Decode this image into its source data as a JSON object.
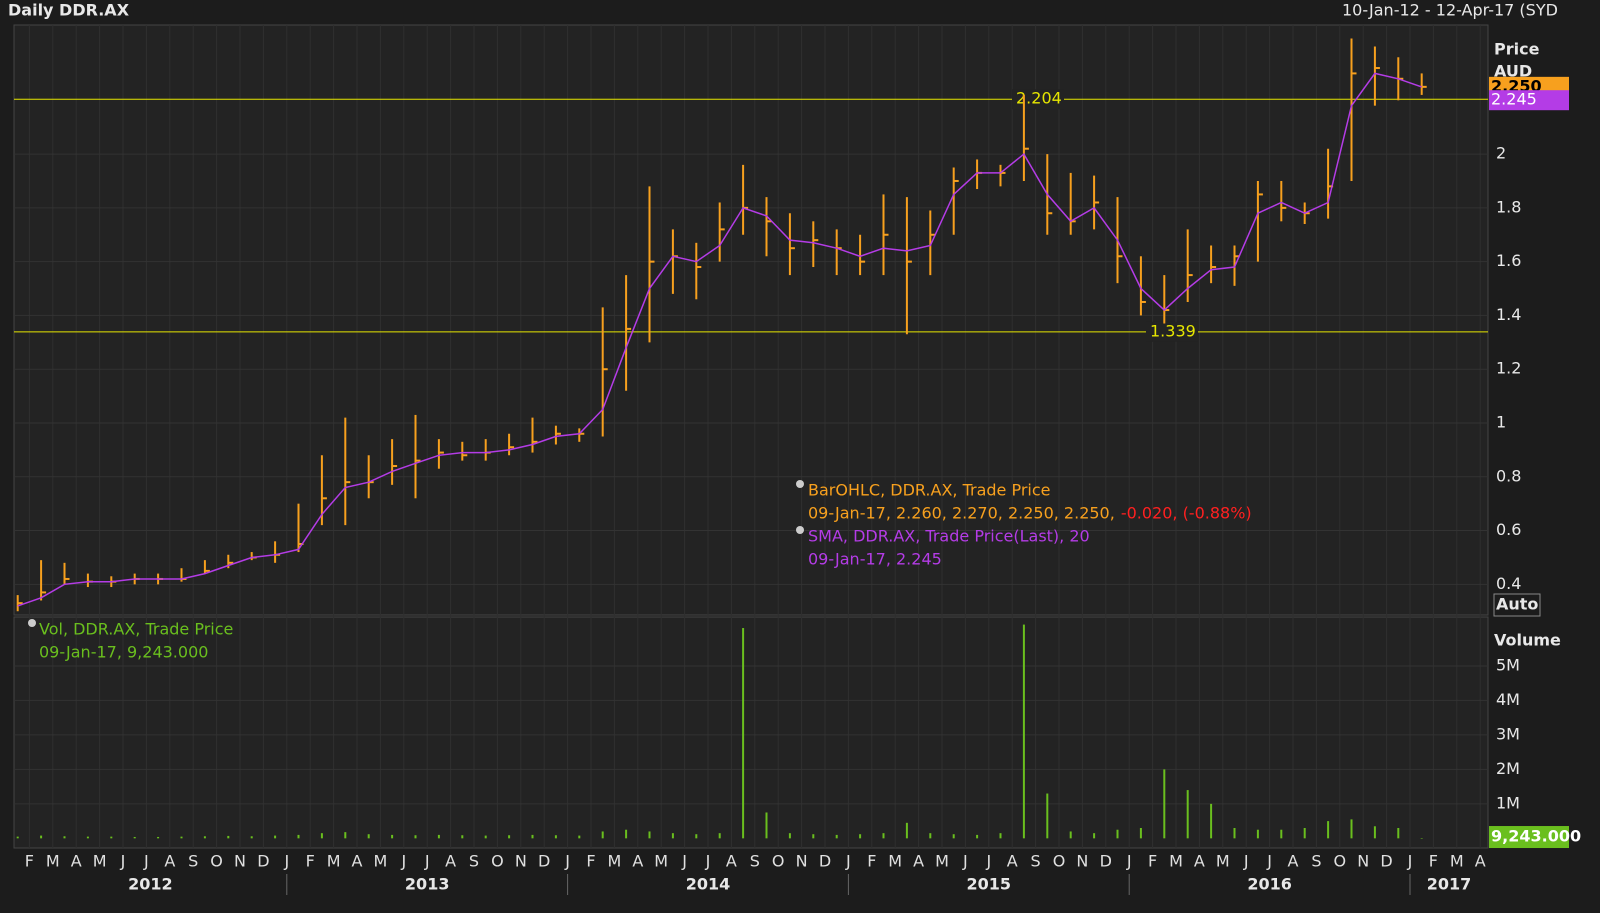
{
  "chart_data": [
    {
      "type": "ohlc",
      "title": "Daily DDR.AX",
      "date_range": "10-Jan-12 - 12-Apr-17 (SYD",
      "axis_title": "Price",
      "unit": "AUD",
      "scale_mode": "Auto",
      "x": [
        "2012-01",
        "2012-02",
        "2012-03",
        "2012-04",
        "2012-05",
        "2012-06",
        "2012-07",
        "2012-08",
        "2012-09",
        "2012-10",
        "2012-11",
        "2012-12",
        "2013-01",
        "2013-02",
        "2013-03",
        "2013-04",
        "2013-05",
        "2013-06",
        "2013-07",
        "2013-08",
        "2013-09",
        "2013-10",
        "2013-11",
        "2013-12",
        "2014-01",
        "2014-02",
        "2014-03",
        "2014-04",
        "2014-05",
        "2014-06",
        "2014-07",
        "2014-08",
        "2014-09",
        "2014-10",
        "2014-11",
        "2014-12",
        "2015-01",
        "2015-02",
        "2015-03",
        "2015-04",
        "2015-05",
        "2015-06",
        "2015-07",
        "2015-08",
        "2015-09",
        "2015-10",
        "2015-11",
        "2015-12",
        "2016-01",
        "2016-02",
        "2016-03",
        "2016-04",
        "2016-05",
        "2016-06",
        "2016-07",
        "2016-08",
        "2016-09",
        "2016-10",
        "2016-11",
        "2016-12",
        "2017-01"
      ],
      "high": [
        0.36,
        0.49,
        0.48,
        0.44,
        0.43,
        0.44,
        0.44,
        0.46,
        0.49,
        0.51,
        0.52,
        0.56,
        0.7,
        0.88,
        1.02,
        0.88,
        0.94,
        1.03,
        0.94,
        0.93,
        0.94,
        0.96,
        1.02,
        0.99,
        0.98,
        1.43,
        1.55,
        1.88,
        1.72,
        1.67,
        1.82,
        1.96,
        1.84,
        1.78,
        1.75,
        1.72,
        1.7,
        1.85,
        1.84,
        1.79,
        1.95,
        1.98,
        1.96,
        2.22,
        2.0,
        1.93,
        1.92,
        1.84,
        1.62,
        1.55,
        1.72,
        1.66,
        1.66,
        1.9,
        1.9,
        1.82,
        2.02,
        2.43,
        2.4,
        2.36,
        2.3
      ],
      "low": [
        0.3,
        0.34,
        0.4,
        0.39,
        0.39,
        0.4,
        0.4,
        0.41,
        0.44,
        0.46,
        0.49,
        0.48,
        0.52,
        0.62,
        0.62,
        0.72,
        0.77,
        0.72,
        0.83,
        0.86,
        0.86,
        0.88,
        0.89,
        0.92,
        0.93,
        0.95,
        1.12,
        1.3,
        1.48,
        1.46,
        1.6,
        1.7,
        1.62,
        1.55,
        1.58,
        1.55,
        1.55,
        1.55,
        1.33,
        1.55,
        1.7,
        1.87,
        1.88,
        1.9,
        1.7,
        1.7,
        1.72,
        1.52,
        1.4,
        1.37,
        1.45,
        1.52,
        1.51,
        1.6,
        1.75,
        1.74,
        1.76,
        1.9,
        2.18,
        2.2,
        2.22
      ],
      "close": [
        0.33,
        0.37,
        0.42,
        0.41,
        0.41,
        0.42,
        0.42,
        0.42,
        0.45,
        0.48,
        0.5,
        0.51,
        0.55,
        0.72,
        0.78,
        0.78,
        0.84,
        0.86,
        0.89,
        0.88,
        0.89,
        0.91,
        0.93,
        0.96,
        0.96,
        1.2,
        1.35,
        1.6,
        1.62,
        1.58,
        1.72,
        1.8,
        1.75,
        1.65,
        1.68,
        1.65,
        1.6,
        1.7,
        1.6,
        1.7,
        1.9,
        1.93,
        1.93,
        2.02,
        1.78,
        1.75,
        1.82,
        1.62,
        1.45,
        1.42,
        1.55,
        1.58,
        1.62,
        1.85,
        1.8,
        1.78,
        1.88,
        2.3,
        2.32,
        2.28,
        2.25
      ],
      "sma": [
        0.32,
        0.35,
        0.4,
        0.41,
        0.41,
        0.42,
        0.42,
        0.42,
        0.44,
        0.47,
        0.5,
        0.51,
        0.53,
        0.66,
        0.76,
        0.78,
        0.82,
        0.85,
        0.88,
        0.89,
        0.89,
        0.9,
        0.92,
        0.95,
        0.96,
        1.05,
        1.28,
        1.5,
        1.62,
        1.6,
        1.66,
        1.8,
        1.77,
        1.68,
        1.67,
        1.65,
        1.62,
        1.65,
        1.64,
        1.66,
        1.85,
        1.93,
        1.93,
        2.0,
        1.85,
        1.75,
        1.8,
        1.68,
        1.5,
        1.42,
        1.5,
        1.57,
        1.58,
        1.78,
        1.82,
        1.78,
        1.82,
        2.18,
        2.3,
        2.28,
        2.25
      ],
      "color": "#f7a01e",
      "sma_color": "#b43ce6",
      "hline_color": "#e6e600",
      "hlines": [
        2.204,
        1.339
      ],
      "last_labels": [
        {
          "value": 2.25,
          "label": "2.250"
        },
        {
          "value": 2.245,
          "label": "2.245"
        }
      ],
      "legend": [
        "BarOHLC, DDR.AX, Trade Price",
        "09-Jan-17, 2.260, 2.270, 2.250, 2.250,",
        "-0.020, (-0.88%)",
        "SMA, DDR.AX, Trade Price(Last),  20",
        "09-Jan-17, 2.245"
      ],
      "ylim": [
        0.286,
        2.48
      ],
      "yticks": [
        0.4,
        0.6,
        0.8,
        1,
        1.2,
        1.4,
        1.6,
        1.8,
        2
      ],
      "grid": true
    },
    {
      "type": "volume",
      "axis_title": "Volume",
      "values": [
        50000,
        80000,
        60000,
        50000,
        50000,
        40000,
        40000,
        50000,
        60000,
        70000,
        60000,
        80000,
        100000,
        150000,
        180000,
        120000,
        100000,
        90000,
        100000,
        90000,
        80000,
        90000,
        100000,
        90000,
        80000,
        200000,
        250000,
        200000,
        150000,
        120000,
        150000,
        6100000,
        750000,
        150000,
        120000,
        100000,
        120000,
        150000,
        450000,
        150000,
        120000,
        100000,
        150000,
        6200000,
        1300000,
        200000,
        150000,
        250000,
        300000,
        2000000,
        1400000,
        1000000,
        300000,
        250000,
        250000,
        300000,
        500000,
        550000,
        350000,
        300000,
        9243
      ],
      "color": "#6abf1e",
      "last_labels": [
        {
          "value": 9243,
          "label": "9,243.000"
        }
      ],
      "legend": [
        "Vol, DDR.AX, Trade Price",
        "09-Jan-17, 9,243.000"
      ],
      "ylim": [
        -280000,
        6420000
      ],
      "yticks": [
        {
          "value": 1000000,
          "label": "1M"
        },
        {
          "value": 2000000,
          "label": "2M"
        },
        {
          "value": 3000000,
          "label": "3M"
        },
        {
          "value": 4000000,
          "label": "4M"
        },
        {
          "value": 5000000,
          "label": "5M"
        }
      ],
      "grid": true
    }
  ],
  "x_axis": {
    "months": [
      "F",
      "M",
      "A",
      "M",
      "J",
      "J",
      "A",
      "S",
      "O",
      "N",
      "D",
      "J",
      "F",
      "M",
      "A",
      "M",
      "J",
      "J",
      "A",
      "S",
      "O",
      "N",
      "D",
      "J",
      "F",
      "M",
      "A",
      "M",
      "J",
      "J",
      "A",
      "S",
      "O",
      "N",
      "D",
      "J",
      "F",
      "M",
      "A",
      "M",
      "J",
      "J",
      "A",
      "S",
      "O",
      "N",
      "D",
      "J",
      "F",
      "M",
      "A",
      "M",
      "J",
      "J",
      "A",
      "S",
      "O",
      "N",
      "D",
      "J",
      "F",
      "M",
      "A"
    ],
    "years": [
      "2012",
      "2013",
      "2014",
      "2015",
      "2016",
      "2017"
    ]
  }
}
